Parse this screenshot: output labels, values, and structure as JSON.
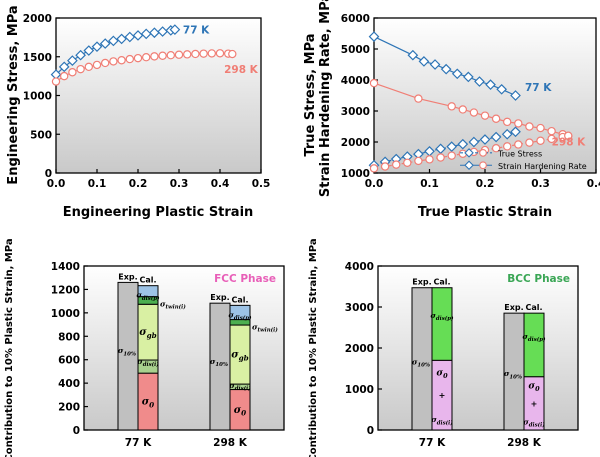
{
  "chart_data": [
    {
      "type": "scatter",
      "id": "eng",
      "xlabel": "Engineering Plastic Strain",
      "ylabel": "Engineering Stress, MPa",
      "xlim": [
        0,
        0.5
      ],
      "ylim": [
        0,
        2000
      ],
      "xticks": [
        "0.0",
        "0.1",
        "0.2",
        "0.3",
        "0.4",
        "0.5"
      ],
      "yticks": [
        "0",
        "500",
        "1000",
        "1500",
        "2000"
      ],
      "series": [
        {
          "name": "77 K",
          "color": "#2e75b6",
          "marker": "diamond",
          "x": [
            0,
            0.02,
            0.04,
            0.06,
            0.08,
            0.1,
            0.12,
            0.14,
            0.16,
            0.18,
            0.2,
            0.22,
            0.24,
            0.26,
            0.28,
            0.29
          ],
          "y": [
            1270,
            1370,
            1450,
            1520,
            1580,
            1630,
            1670,
            1705,
            1730,
            1755,
            1775,
            1795,
            1810,
            1825,
            1840,
            1850
          ]
        },
        {
          "name": "298 K",
          "color": "#f07e75",
          "marker": "circle",
          "x": [
            0,
            0.02,
            0.04,
            0.06,
            0.08,
            0.1,
            0.12,
            0.14,
            0.16,
            0.18,
            0.2,
            0.22,
            0.24,
            0.26,
            0.28,
            0.3,
            0.32,
            0.34,
            0.36,
            0.38,
            0.4,
            0.42,
            0.43
          ],
          "y": [
            1180,
            1250,
            1300,
            1340,
            1370,
            1395,
            1420,
            1440,
            1455,
            1470,
            1482,
            1494,
            1505,
            1513,
            1520,
            1526,
            1531,
            1536,
            1540,
            1543,
            1545,
            1540,
            1535
          ]
        }
      ]
    },
    {
      "type": "scatter",
      "id": "true",
      "xlabel": "True Plastic Strain",
      "ylabel": "True Stress, MPa\nStrain Hardening Rate, MPa",
      "xlim": [
        0,
        0.4
      ],
      "ylim": [
        1000,
        6000
      ],
      "xticks": [
        "0.0",
        "0.1",
        "0.2",
        "0.3",
        "0.4"
      ],
      "yticks": [
        "1000",
        "2000",
        "3000",
        "4000",
        "5000",
        "6000"
      ],
      "legend": {
        "position": "bottom-right",
        "entries": [
          "True Stress",
          "Strain Hardening Rate"
        ]
      },
      "series": [
        {
          "name": "77 K",
          "label": "77 K",
          "color": "#2e75b6",
          "marker": "diamond",
          "role": "hardening",
          "x": [
            0,
            0.07,
            0.09,
            0.11,
            0.13,
            0.15,
            0.17,
            0.19,
            0.21,
            0.23,
            0.255
          ],
          "y": [
            5400,
            4800,
            4600,
            4500,
            4350,
            4200,
            4100,
            3950,
            3850,
            3700,
            3500
          ]
        },
        {
          "name": "298 K",
          "label": "298 K",
          "color": "#f07e75",
          "marker": "circle",
          "role": "hardening",
          "x": [
            0,
            0.08,
            0.14,
            0.16,
            0.18,
            0.2,
            0.22,
            0.24,
            0.26,
            0.28,
            0.3,
            0.32,
            0.34,
            0.35
          ],
          "y": [
            3900,
            3400,
            3150,
            3050,
            2950,
            2850,
            2750,
            2650,
            2600,
            2500,
            2450,
            2350,
            2250,
            2200
          ]
        },
        {
          "name": "77 K",
          "color": "#2e75b6",
          "marker": "diamond",
          "role": "stress",
          "x": [
            0,
            0.02,
            0.04,
            0.06,
            0.08,
            0.1,
            0.12,
            0.14,
            0.16,
            0.18,
            0.2,
            0.22,
            0.24,
            0.255
          ],
          "y": [
            1250,
            1360,
            1450,
            1530,
            1610,
            1700,
            1780,
            1850,
            1930,
            2000,
            2080,
            2160,
            2250,
            2330
          ]
        },
        {
          "name": "298 K",
          "color": "#f07e75",
          "marker": "circle",
          "role": "stress",
          "x": [
            0,
            0.02,
            0.04,
            0.06,
            0.08,
            0.1,
            0.12,
            0.14,
            0.16,
            0.18,
            0.2,
            0.22,
            0.24,
            0.26,
            0.28,
            0.3,
            0.32,
            0.34,
            0.35
          ],
          "y": [
            1150,
            1210,
            1270,
            1330,
            1390,
            1440,
            1500,
            1560,
            1620,
            1680,
            1740,
            1800,
            1860,
            1920,
            1980,
            2040,
            2100,
            2160,
            2200
          ]
        }
      ]
    },
    {
      "type": "bar",
      "id": "fcc",
      "ylabel": "Contribution to 10% Plastic Strain, MPa",
      "phase_label": "FCC Phase",
      "phase_color": "#e85fb8",
      "ylim": [
        0,
        1500
      ],
      "yticks": [
        "0",
        "200",
        "400",
        "600",
        "800",
        "1000",
        "1200",
        "1400"
      ],
      "categories": [
        "77 K",
        "298 K"
      ],
      "bar_labels": [
        "Exp.",
        "Cal."
      ],
      "exp": [
        1350,
        1160
      ],
      "exp_label": "σ10%",
      "stack": [
        {
          "name": "σ0",
          "color": "#f08b8b",
          "values": [
            520,
            370
          ]
        },
        {
          "name": "σdis(i)",
          "color": "#a9d18e",
          "values": [
            120,
            50
          ]
        },
        {
          "name": "σgb",
          "color": "#d9f0a3",
          "values": [
            510,
            540
          ]
        },
        {
          "name": "σtwin(i)",
          "color": "#4caf50",
          "values": [
            70,
            50
          ]
        },
        {
          "name": "σdis(p)",
          "color": "#9dc3e6",
          "values": [
            100,
            130
          ]
        }
      ],
      "label_text": {
        "s0": "σ0",
        "sdisi": "σdis(i)",
        "sgb": "σgb",
        "stwin": "σtwin(i)",
        "sdisp": "σdis(p)",
        "s10": "σ10%"
      }
    },
    {
      "type": "bar",
      "id": "bcc",
      "ylabel": "Contribution to 10% Plastic Strain, MPa",
      "phase_label": "BCC Phase",
      "phase_color": "#3aa655",
      "ylim": [
        0,
        4000
      ],
      "yticks": [
        "0",
        "1000",
        "2000",
        "3000",
        "4000"
      ],
      "categories": [
        "77 K",
        "298 K"
      ],
      "bar_labels": [
        "Exp.",
        "Cal."
      ],
      "exp": [
        3470,
        2850
      ],
      "exp_label": "σ10%",
      "stack": [
        {
          "name": "σ0 + σdis(i)",
          "color": "#e8b6ec",
          "values": [
            1700,
            1300
          ]
        },
        {
          "name": "σdis(p)",
          "color": "#66dd55",
          "values": [
            1770,
            1550
          ]
        }
      ],
      "label_text": {
        "s0": "σ0",
        "plus": "+",
        "sdisi": "σdis(i)",
        "sdisp": "σdis(p)",
        "s10": "σ10%"
      }
    }
  ]
}
